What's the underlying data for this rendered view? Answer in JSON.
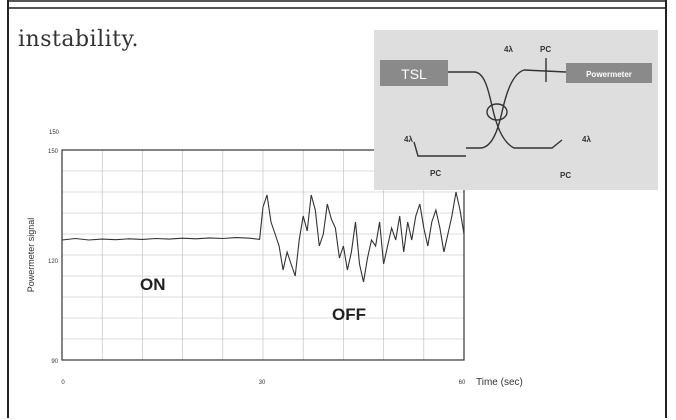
{
  "text": {
    "lead": "instability."
  },
  "chart_data": {
    "type": "line",
    "title": "",
    "xlabel": "Time (sec)",
    "ylabel": "Powermeter signal",
    "xlim": [
      0,
      60
    ],
    "ylim": [
      80,
      150
    ],
    "y_top_label": "150",
    "x_ticks": [
      "0",
      "30",
      "60"
    ],
    "y_ticks": [
      "150",
      "120",
      "90"
    ],
    "annotations": [
      {
        "text": "ON",
        "x": 12,
        "y": 112
      },
      {
        "text": "OFF",
        "x": 44,
        "y": 104
      }
    ],
    "series": [
      {
        "x": [
          0,
          2,
          4,
          6,
          8,
          10,
          12,
          14,
          16,
          18,
          20,
          22,
          24,
          26,
          28,
          29.5,
          30,
          30.6,
          31.2,
          31.8,
          32.4,
          33,
          33.6,
          34.2,
          34.8,
          35.4,
          36,
          36.6,
          37.2,
          37.8,
          38.4,
          39,
          39.6,
          40.2,
          40.8,
          41.4,
          42,
          42.6,
          43.2,
          43.8,
          44.4,
          45,
          45.6,
          46.2,
          46.8,
          47.4,
          48,
          48.6,
          49.2,
          49.8,
          50.4,
          51,
          51.6,
          52.2,
          52.8,
          53.4,
          54,
          54.6,
          55.2,
          55.8,
          56.4,
          57,
          57.6,
          58.2,
          58.8,
          59.4,
          60
        ],
        "y": [
          120,
          120.5,
          120,
          120.3,
          120.1,
          120.4,
          120.2,
          120.5,
          120.3,
          120.6,
          120.4,
          120.7,
          120.5,
          120.8,
          120.6,
          120.2,
          131,
          135,
          126,
          122,
          118,
          110,
          116,
          112,
          108,
          120,
          128,
          123,
          135,
          130,
          118,
          122,
          132,
          127,
          124,
          114,
          118,
          110,
          116,
          126,
          112,
          106,
          114,
          120,
          118,
          126,
          112,
          118,
          124,
          120,
          128,
          116,
          126,
          120,
          128,
          132,
          124,
          118,
          126,
          130,
          124,
          116,
          122,
          128,
          136,
          130,
          122
        ]
      }
    ]
  },
  "inset": {
    "tsl": "TSL",
    "powermeter": "Powermeter",
    "pc_top": "PC",
    "lambda_top": "4λ",
    "lambda_left": "4λ",
    "pc_left": "PC",
    "lambda_right": "4λ",
    "pc_right": "PC"
  }
}
